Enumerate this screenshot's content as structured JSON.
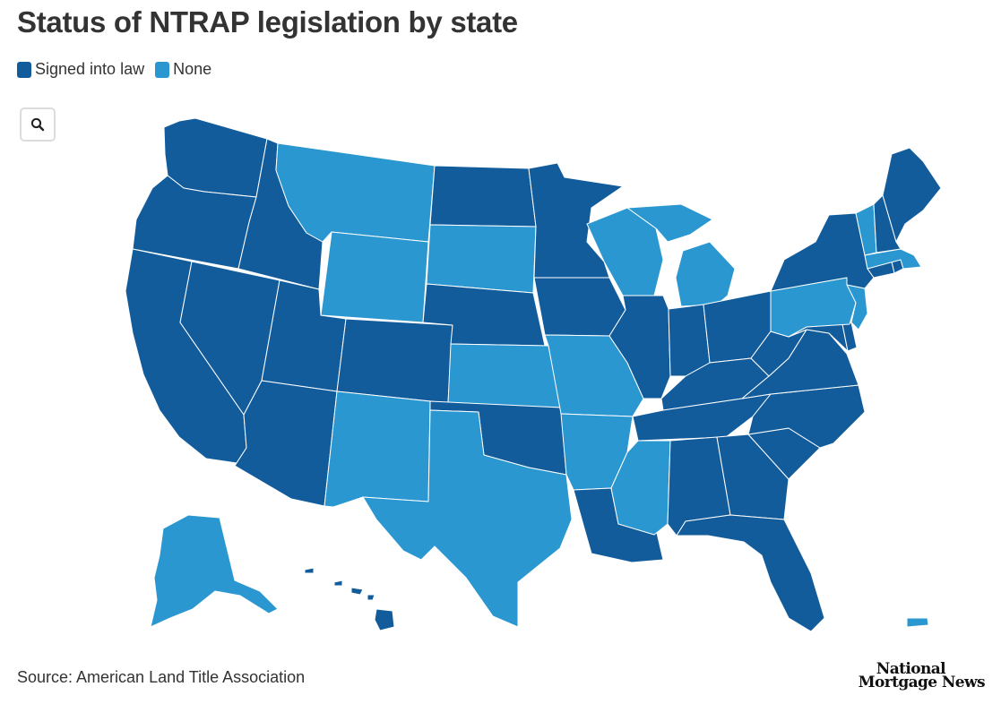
{
  "title": "Status of NTRAP legislation by state",
  "legend": [
    {
      "label": "Signed into law",
      "color": "#135c9c"
    },
    {
      "label": "None",
      "color": "#2a97d0"
    }
  ],
  "zoom_icon": "search-icon",
  "states": {
    "WA": "Signed into law",
    "OR": "Signed into law",
    "CA": "Signed into law",
    "ID": "Signed into law",
    "NV": "Signed into law",
    "UT": "Signed into law",
    "AZ": "Signed into law",
    "MT": "None",
    "WY": "None",
    "CO": "Signed into law",
    "NM": "None",
    "ND": "Signed into law",
    "SD": "None",
    "NE": "Signed into law",
    "KS": "None",
    "OK": "Signed into law",
    "TX": "None",
    "MN": "Signed into law",
    "IA": "Signed into law",
    "MO": "None",
    "AR": "None",
    "LA": "Signed into law",
    "WI": "None",
    "IL": "Signed into law",
    "MI": "None",
    "IN": "Signed into law",
    "OH": "Signed into law",
    "KY": "Signed into law",
    "TN": "Signed into law",
    "MS": "None",
    "AL": "Signed into law",
    "GA": "Signed into law",
    "FL": "Signed into law",
    "SC": "Signed into law",
    "NC": "Signed into law",
    "VA": "Signed into law",
    "WV": "Signed into law",
    "MD": "Signed into law",
    "DE": "Signed into law",
    "PA": "None",
    "NJ": "None",
    "NY": "Signed into law",
    "CT": "Signed into law",
    "RI": "Signed into law",
    "MA": "None",
    "VT": "None",
    "NH": "Signed into law",
    "ME": "Signed into law",
    "AK": "None",
    "HI": "Signed into law",
    "PR": "None"
  },
  "source": "Source: American Land Title Association",
  "logo": {
    "line1": "National",
    "line2": "Mortgage News"
  }
}
